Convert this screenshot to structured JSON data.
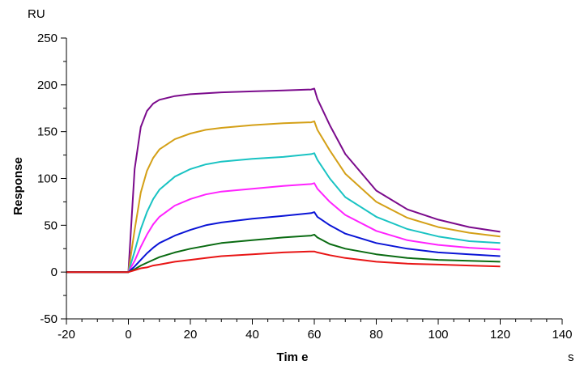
{
  "chart_data": {
    "type": "line",
    "title": "",
    "xlabel": "Tim e",
    "ylabel": "Response",
    "x_unit": "s",
    "y_unit": "RU",
    "xlim": [
      -20,
      140
    ],
    "ylim": [
      -50,
      250
    ],
    "x_ticks": [
      -20,
      0,
      20,
      40,
      60,
      80,
      100,
      120,
      140
    ],
    "y_ticks": [
      -50,
      0,
      50,
      100,
      150,
      200,
      250
    ],
    "grid": false,
    "legend": "none",
    "x": [
      -20,
      0,
      2,
      4,
      6,
      8,
      10,
      15,
      20,
      25,
      30,
      40,
      50,
      59,
      60,
      61,
      65,
      70,
      80,
      90,
      100,
      110,
      120
    ],
    "series": [
      {
        "color": "#7b0b8c",
        "values": [
          0,
          0,
          110,
          155,
          172,
          180,
          184,
          188,
          190,
          191,
          192,
          193,
          194,
          195,
          196,
          185,
          157,
          126,
          87,
          67,
          56,
          48,
          43
        ]
      },
      {
        "color": "#d4a017",
        "values": [
          0,
          0,
          45,
          85,
          108,
          122,
          131,
          142,
          148,
          152,
          154,
          157,
          159,
          160,
          161,
          152,
          130,
          105,
          75,
          58,
          48,
          42,
          38
        ]
      },
      {
        "color": "#19c3c3",
        "values": [
          0,
          0,
          22,
          46,
          64,
          78,
          88,
          102,
          110,
          115,
          118,
          121,
          123,
          126,
          127,
          120,
          100,
          80,
          59,
          46,
          38,
          33,
          31
        ]
      },
      {
        "color": "#ff22ff",
        "values": [
          0,
          0,
          12,
          27,
          40,
          51,
          59,
          71,
          78,
          83,
          86,
          89,
          92,
          94,
          95,
          89,
          75,
          61,
          44,
          34,
          29,
          26,
          24
        ]
      },
      {
        "color": "#0a14d6",
        "values": [
          0,
          0,
          6,
          13,
          20,
          26,
          31,
          39,
          45,
          50,
          53,
          57,
          60,
          63,
          64,
          59,
          50,
          41,
          31,
          25,
          21,
          19,
          17
        ]
      },
      {
        "color": "#0a6b12",
        "values": [
          0,
          0,
          3,
          7,
          10,
          13,
          16,
          21,
          25,
          28,
          31,
          34,
          37,
          39,
          40,
          37,
          30,
          25,
          19,
          15,
          13,
          12,
          11
        ]
      },
      {
        "color": "#e81515",
        "values": [
          0,
          0,
          2,
          4,
          5,
          7,
          8,
          11,
          13,
          15,
          17,
          19,
          21,
          22,
          22,
          21,
          18,
          15,
          11,
          9,
          8,
          7,
          6
        ]
      }
    ]
  }
}
